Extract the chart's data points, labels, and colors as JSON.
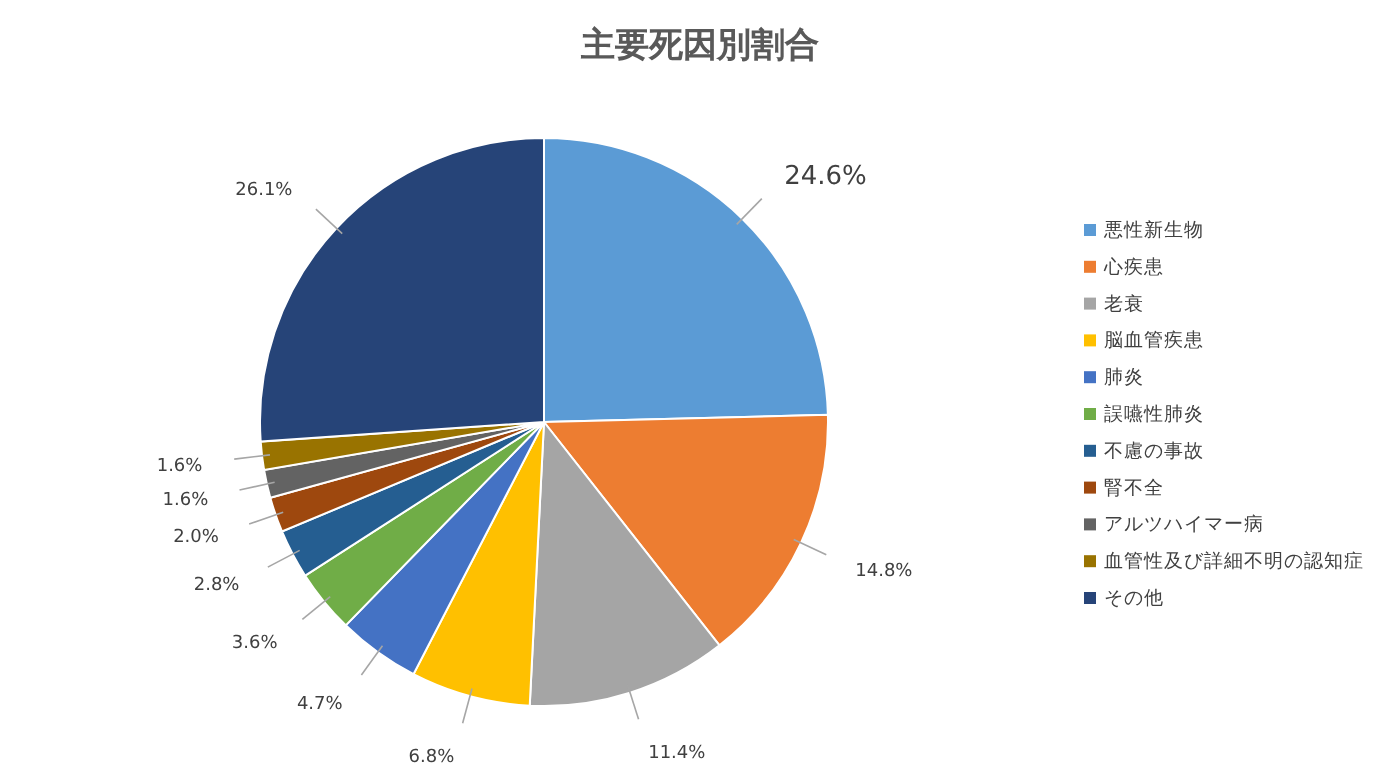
{
  "chart_data": {
    "type": "pie",
    "title": "主要死因別割合",
    "categories": [
      "悪性新生物",
      "心疾患",
      "老衰",
      "脳血管疾患",
      "肺炎",
      "誤嚥性肺炎",
      "不慮の事故",
      "腎不全",
      "アルツハイマー病",
      "血管性及び詳細不明の認知症",
      "その他"
    ],
    "values": [
      24.6,
      14.8,
      11.4,
      6.8,
      4.7,
      3.6,
      2.8,
      2.0,
      1.6,
      1.6,
      26.1
    ],
    "value_labels": [
      "24.6%",
      "14.8%",
      "11.4%",
      "6.8%",
      "4.7%",
      "3.6%",
      "2.8%",
      "2.0%",
      "1.6%",
      "1.6%",
      "26.1%"
    ],
    "colors": [
      "#5b9bd5",
      "#ed7d31",
      "#a5a5a5",
      "#ffc000",
      "#4472c4",
      "#70ad47",
      "#255e91",
      "#9e480e",
      "#636363",
      "#997300",
      "#264478"
    ],
    "legend": "right"
  }
}
